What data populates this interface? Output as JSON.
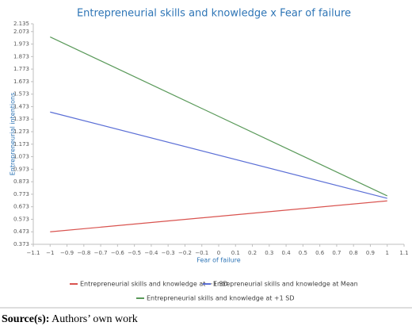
{
  "chart_data": {
    "type": "line",
    "title": "Entrepreneurial skills and knowledge x Fear of failure",
    "x_label": "Fear of failure",
    "y_label": "Entrepreneurial intentions",
    "x": [
      -1,
      1
    ],
    "series": [
      {
        "name": "Entrepreneurial skills and knowledge at −1 SD",
        "color": "#d9534f",
        "values": [
          0.473,
          0.72
        ]
      },
      {
        "name": "Entrepreneurial skills and knowledge at Mean",
        "color": "#5b6fd6",
        "values": [
          1.43,
          0.74
        ]
      },
      {
        "name": "Entrepreneurial skills and knowledge at +1 SD",
        "color": "#5a9a5a",
        "values": [
          2.03,
          0.76
        ]
      }
    ],
    "xlim": [
      -1.1,
      1.1
    ],
    "xticks": [
      {
        "value": -1.1,
        "label": "−1.1"
      },
      {
        "value": -1,
        "label": "−1"
      },
      {
        "value": -0.9,
        "label": "−0.9"
      },
      {
        "value": -0.8,
        "label": "−0.8"
      },
      {
        "value": -0.7,
        "label": "−0.7"
      },
      {
        "value": -0.6,
        "label": "−0.6"
      },
      {
        "value": -0.5,
        "label": "−0.5"
      },
      {
        "value": -0.4,
        "label": "−0.4"
      },
      {
        "value": -0.3,
        "label": "−0.3"
      },
      {
        "value": -0.2,
        "label": "−0.2"
      },
      {
        "value": -0.1,
        "label": "−0.1"
      },
      0,
      0.1,
      0.2,
      0.3,
      0.4,
      0.5,
      0.6,
      0.7,
      0.8,
      0.9,
      1,
      1.1
    ],
    "ylim": [
      0.373,
      2.135
    ],
    "yticks": [
      0.373,
      0.473,
      0.573,
      0.673,
      0.773,
      0.873,
      0.973,
      1.073,
      1.173,
      1.273,
      1.373,
      1.473,
      1.573,
      1.673,
      1.773,
      1.873,
      1.973,
      2.073,
      2.135
    ],
    "grid": false
  },
  "source": {
    "label": "Source(s):",
    "text": "Authors’ own work"
  }
}
